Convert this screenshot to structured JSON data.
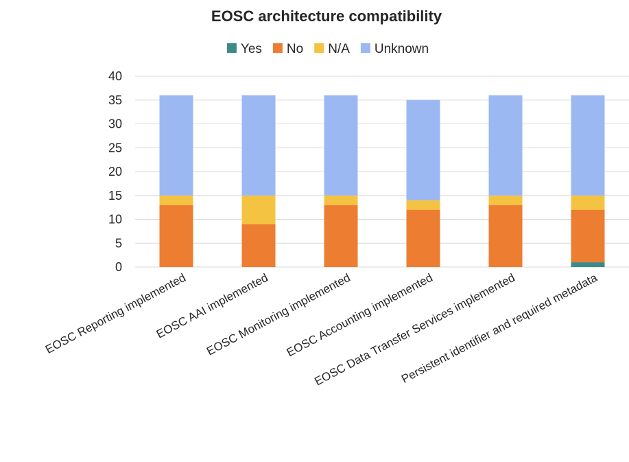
{
  "chart_data": {
    "type": "bar",
    "stacked": true,
    "title": "EOSC architecture compatibility",
    "xlabel": "",
    "ylabel": "",
    "ylim": [
      0,
      40
    ],
    "yticks": [
      0,
      5,
      10,
      15,
      20,
      25,
      30,
      35,
      40
    ],
    "grid": true,
    "legend_position": "top",
    "categories": [
      "EOSC Reporting implemented",
      "EOSC AAI implemented",
      "EOSC Monitoring implemented",
      "EOSC Accounting implemented",
      "EOSC Data Transfer Services implemented",
      "Persistent identifier and required metadata"
    ],
    "series": [
      {
        "name": "Yes",
        "color": "#3d8a8a",
        "values": [
          0,
          0,
          0,
          0,
          0,
          1
        ]
      },
      {
        "name": "No",
        "color": "#ed7d31",
        "values": [
          13,
          9,
          13,
          12,
          13,
          11
        ]
      },
      {
        "name": "N/A",
        "color": "#f5c342",
        "values": [
          2,
          6,
          2,
          2,
          2,
          3
        ]
      },
      {
        "name": "Unknown",
        "color": "#9cb8f2",
        "values": [
          21,
          21,
          21,
          21,
          21,
          21
        ]
      }
    ]
  }
}
